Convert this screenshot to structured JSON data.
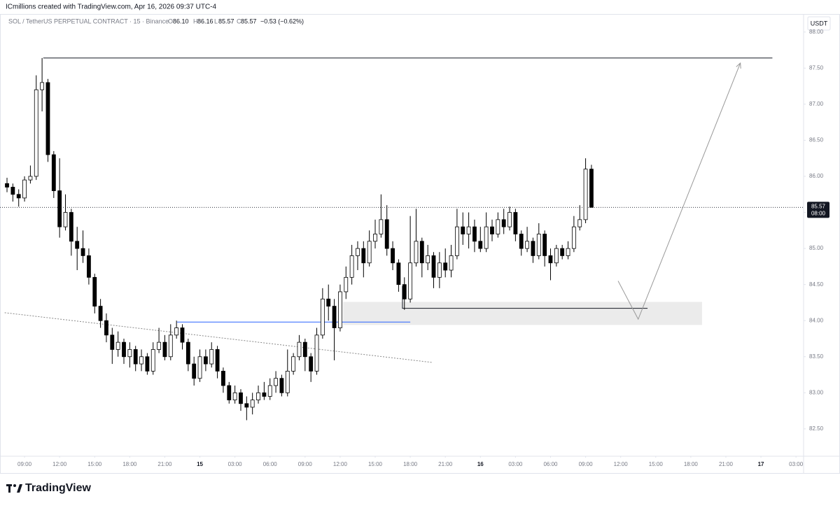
{
  "header": {
    "credit": "ICmillions created with TradingView.com, Apr 16, 2026 09:37 UTC-4",
    "symbol": "SOL / TetherUS PERPETUAL CONTRACT · 15 · Binance",
    "o_label": "O",
    "o": "86.10",
    "h_label": "H",
    "h": "86.16",
    "l_label": "L",
    "l": "85.57",
    "c_label": "C",
    "c": "85.57",
    "change": "−0.53 (−0.62%)",
    "currency": "USDT"
  },
  "chart_data": {
    "type": "candlestick",
    "grid": false,
    "up_color": "#ffffff",
    "down_color": "#000000",
    "border_color": "#000000",
    "x": [
      7.5,
      8,
      8.5,
      9,
      9.5,
      10,
      10.5,
      11,
      11.5,
      12,
      12.5,
      13,
      13.5,
      14,
      14.5,
      15,
      15.5,
      16,
      16.5,
      17,
      17.5,
      18,
      18.5,
      19,
      19.5,
      20,
      20.5,
      21,
      21.5,
      22,
      22.5,
      23,
      23.5,
      24,
      24.5,
      25,
      25.5,
      26,
      26.5,
      27,
      27.5,
      28,
      28.5,
      29,
      29.5,
      30,
      30.5,
      31,
      31.5,
      32,
      32.5,
      33,
      33.5,
      34,
      34.5,
      35,
      35.5,
      36,
      36.5,
      37,
      37.5,
      38,
      38.5,
      39,
      39.5,
      40,
      40.5,
      41,
      41.5,
      42,
      42.5,
      43,
      43.5,
      44,
      44.5,
      45,
      45.5,
      46,
      46.5,
      47,
      47.5,
      48,
      48.5,
      49,
      49.5,
      50,
      50.5,
      51,
      51.5,
      52,
      52.5,
      53,
      53.5,
      54,
      54.5,
      55,
      55.5,
      56,
      56.5,
      57,
      57.5
    ],
    "open": [
      85.9,
      85.85,
      85.75,
      85.7,
      85.95,
      86.0,
      87.2,
      87.3,
      86.3,
      85.8,
      85.3,
      85.5,
      85.1,
      85.0,
      84.9,
      84.6,
      84.2,
      84.0,
      83.8,
      83.6,
      83.7,
      83.5,
      83.6,
      83.4,
      83.5,
      83.3,
      83.6,
      83.7,
      83.5,
      83.8,
      83.9,
      83.7,
      83.4,
      83.2,
      83.5,
      83.4,
      83.6,
      83.3,
      83.1,
      82.9,
      83.0,
      82.85,
      82.8,
      82.9,
      83.0,
      82.95,
      83.1,
      83.2,
      83.0,
      83.3,
      83.5,
      83.7,
      83.5,
      83.3,
      83.8,
      84.3,
      84.2,
      83.9,
      84.4,
      84.6,
      84.9,
      85.0,
      84.8,
      85.1,
      85.2,
      85.4,
      85.0,
      84.8,
      84.5,
      84.3,
      84.8,
      85.1,
      84.8,
      84.9,
      84.6,
      84.8,
      84.7,
      84.9,
      85.3,
      85.2,
      85.3,
      85.1,
      85.0,
      85.3,
      85.2,
      85.4,
      85.3,
      85.5,
      85.2,
      85.0,
      85.1,
      84.9,
      85.2,
      84.9,
      84.8,
      85.0,
      84.9,
      85.0,
      85.3,
      85.4,
      86.1
    ],
    "high": [
      85.98,
      85.9,
      85.82,
      86.0,
      86.15,
      87.4,
      87.64,
      87.35,
      86.35,
      86.25,
      85.75,
      85.55,
      85.3,
      85.25,
      85.0,
      84.65,
      84.3,
      84.1,
      83.9,
      83.85,
      83.75,
      83.7,
      83.65,
      83.6,
      83.55,
      83.7,
      83.9,
      83.8,
      83.95,
      84.0,
      83.95,
      83.75,
      83.5,
      83.6,
      83.6,
      83.7,
      83.65,
      83.35,
      83.15,
      83.1,
      83.05,
      82.95,
      83.0,
      83.1,
      83.15,
      83.2,
      83.3,
      83.25,
      83.6,
      83.55,
      83.8,
      83.75,
      83.55,
      83.9,
      84.45,
      84.5,
      84.3,
      84.5,
      84.75,
      85.05,
      85.1,
      85.1,
      85.25,
      85.4,
      85.75,
      85.6,
      85.1,
      84.85,
      84.6,
      85.45,
      85.55,
      85.15,
      85.05,
      84.95,
      84.95,
      85.0,
      85.05,
      85.55,
      85.5,
      85.5,
      85.4,
      85.3,
      85.5,
      85.4,
      85.5,
      85.55,
      85.58,
      85.55,
      85.25,
      85.3,
      85.15,
      85.35,
      85.25,
      85.0,
      85.05,
      85.05,
      85.1,
      85.45,
      85.6,
      86.25,
      86.16
    ],
    "low": [
      85.78,
      85.65,
      85.58,
      85.65,
      85.9,
      85.95,
      86.9,
      86.2,
      85.7,
      85.15,
      85.25,
      84.9,
      84.7,
      84.8,
      84.5,
      84.1,
      83.9,
      83.7,
      83.4,
      83.5,
      83.4,
      83.35,
      83.3,
      83.3,
      83.25,
      83.25,
      83.55,
      83.45,
      83.45,
      83.75,
      83.6,
      83.3,
      83.1,
      83.15,
      83.3,
      83.35,
      83.2,
      83.0,
      82.85,
      82.85,
      82.75,
      82.62,
      82.7,
      82.85,
      82.9,
      82.9,
      83.0,
      82.95,
      82.95,
      83.25,
      83.45,
      83.3,
      83.15,
      83.25,
      83.75,
      84.0,
      83.45,
      83.85,
      84.3,
      84.5,
      84.7,
      84.6,
      84.75,
      85.0,
      85.15,
      84.9,
      84.7,
      84.4,
      84.15,
      84.25,
      84.75,
      84.6,
      84.7,
      84.45,
      84.45,
      84.6,
      84.6,
      84.85,
      85.05,
      85.0,
      84.95,
      84.95,
      84.95,
      85.1,
      85.15,
      85.2,
      85.25,
      85.1,
      84.9,
      84.95,
      84.8,
      84.85,
      84.75,
      84.56,
      84.75,
      84.85,
      84.85,
      84.95,
      85.25,
      85.35,
      85.57
    ],
    "close": [
      85.85,
      85.75,
      85.7,
      85.95,
      86.0,
      87.2,
      87.3,
      86.3,
      85.8,
      85.3,
      85.5,
      85.1,
      85.0,
      84.9,
      84.6,
      84.2,
      84.0,
      83.8,
      83.6,
      83.7,
      83.5,
      83.6,
      83.4,
      83.5,
      83.3,
      83.6,
      83.7,
      83.5,
      83.8,
      83.9,
      83.7,
      83.4,
      83.2,
      83.5,
      83.4,
      83.6,
      83.3,
      83.1,
      82.9,
      83.0,
      82.85,
      82.8,
      82.9,
      83.0,
      82.95,
      83.1,
      83.2,
      83.0,
      83.3,
      83.5,
      83.7,
      83.5,
      83.3,
      83.8,
      84.3,
      84.2,
      83.9,
      84.4,
      84.6,
      84.9,
      85.0,
      84.8,
      85.1,
      85.2,
      85.4,
      85.0,
      84.8,
      84.5,
      84.3,
      84.8,
      85.1,
      84.8,
      84.9,
      84.6,
      84.8,
      84.7,
      84.9,
      85.3,
      85.2,
      85.3,
      85.1,
      85.0,
      85.3,
      85.2,
      85.4,
      85.3,
      85.5,
      85.2,
      85.0,
      85.1,
      84.9,
      85.2,
      84.9,
      84.8,
      85.0,
      84.9,
      85.0,
      85.3,
      85.4,
      86.1,
      85.57
    ],
    "xlim": [
      6.9,
      75.65
    ],
    "ylim": [
      82.14,
      88.25
    ],
    "xticks": [
      {
        "value": 9,
        "label": "09:00"
      },
      {
        "value": 12,
        "label": "12:00"
      },
      {
        "value": 15,
        "label": "15:00"
      },
      {
        "value": 18,
        "label": "18:00"
      },
      {
        "value": 21,
        "label": "21:00"
      },
      {
        "value": 24,
        "label": "15"
      },
      {
        "value": 27,
        "label": "03:00"
      },
      {
        "value": 30,
        "label": "06:00"
      },
      {
        "value": 33,
        "label": "09:00"
      },
      {
        "value": 36,
        "label": "12:00"
      },
      {
        "value": 39,
        "label": "15:00"
      },
      {
        "value": 42,
        "label": "18:00"
      },
      {
        "value": 45,
        "label": "21:00"
      },
      {
        "value": 48,
        "label": "16"
      },
      {
        "value": 51,
        "label": "03:00"
      },
      {
        "value": 54,
        "label": "06:00"
      },
      {
        "value": 57,
        "label": "09:00"
      },
      {
        "value": 60,
        "label": "12:00"
      },
      {
        "value": 63,
        "label": "15:00"
      },
      {
        "value": 66,
        "label": "18:00"
      },
      {
        "value": 69,
        "label": "21:00"
      },
      {
        "value": 72,
        "label": "17"
      },
      {
        "value": 75,
        "label": "03:00"
      }
    ],
    "yticks": [
      {
        "value": 82.5,
        "label": "82.50"
      },
      {
        "value": 83,
        "label": "83.00"
      },
      {
        "value": 83.5,
        "label": "83.50"
      },
      {
        "value": 84,
        "label": "84.00"
      },
      {
        "value": 84.5,
        "label": "84.50"
      },
      {
        "value": 85,
        "label": "85.00"
      },
      {
        "value": 85.5,
        "label": "85.50"
      },
      {
        "value": 86,
        "label": "86.00"
      },
      {
        "value": 86.5,
        "label": "86.50"
      },
      {
        "value": 87,
        "label": "87.00"
      },
      {
        "value": 87.5,
        "label": "87.50"
      },
      {
        "value": 88,
        "label": "88.00"
      }
    ],
    "last_price": {
      "value": 85.57,
      "label": "85.57",
      "countdown": "08:00"
    },
    "drawings": {
      "resistance": {
        "x": [
          10.6,
          72.98
        ],
        "y": [
          87.64,
          87.64
        ],
        "color": "#131722"
      },
      "trendline": {
        "x": [
          7.3,
          43.9
        ],
        "y": [
          84.11,
          83.42
        ],
        "color": "#888888"
      },
      "level": {
        "x": [
          22.05,
          42
        ],
        "y": [
          83.98,
          83.98
        ],
        "color": "#2962ff"
      },
      "low_line": {
        "x": [
          41.33,
          41.33,
          62.3
        ],
        "y": [
          84.48,
          84.17,
          84.17
        ],
        "color": "#131722"
      },
      "projection": {
        "x": [
          59.78,
          61.5,
          70.24
        ],
        "y": [
          84.55,
          84.02,
          87.57
        ],
        "color": "#999999"
      },
      "zone": {
        "x": [
          36.25,
          66.96
        ],
        "y": [
          84.26,
          83.94
        ],
        "color": "#ebebeb"
      }
    }
  },
  "footer": {
    "brand": "TradingView"
  }
}
